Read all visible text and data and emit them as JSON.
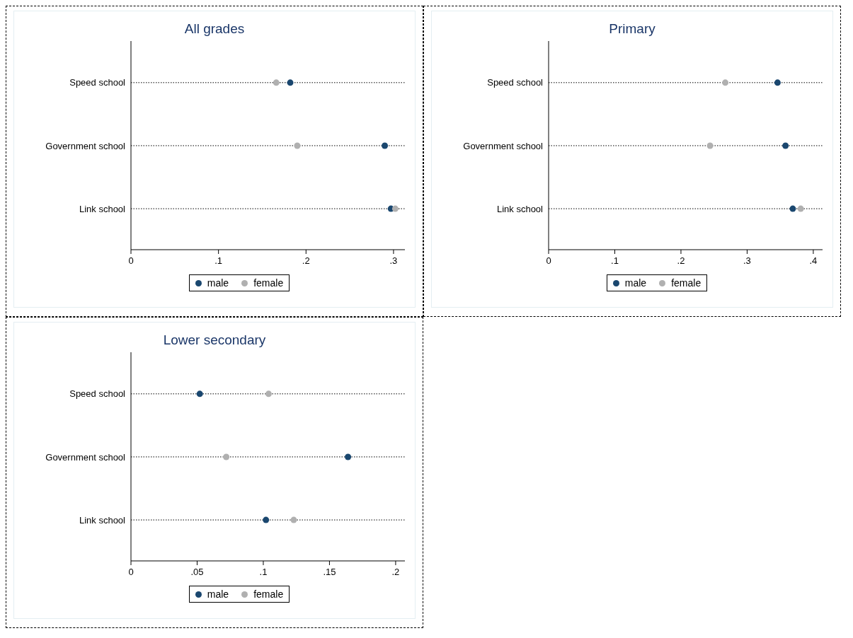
{
  "chart_data": [
    {
      "type": "scatter",
      "title": "All grades",
      "orientation": "horizontal",
      "categories": [
        "Speed school",
        "Government school",
        "Link school"
      ],
      "xlim": [
        0,
        0.313
      ],
      "xticks": [
        {
          "value": 0,
          "label": "0"
        },
        {
          "value": 0.1,
          "label": ".1"
        },
        {
          "value": 0.2,
          "label": ".2"
        },
        {
          "value": 0.3,
          "label": ".3"
        }
      ],
      "grid": "y",
      "line_style": "dotted",
      "marker": "circle",
      "legend": "bottom",
      "series": [
        {
          "name": "male",
          "color": "#1a476f",
          "values": [
            0.182,
            0.29,
            0.297
          ]
        },
        {
          "name": "female",
          "color": "#b0b0b0",
          "values": [
            0.166,
            0.19,
            0.302
          ]
        }
      ]
    },
    {
      "type": "scatter",
      "title": "Primary",
      "orientation": "horizontal",
      "categories": [
        "Speed school",
        "Government school",
        "Link school"
      ],
      "xlim": [
        0,
        0.414
      ],
      "xticks": [
        {
          "value": 0,
          "label": "0"
        },
        {
          "value": 0.1,
          "label": ".1"
        },
        {
          "value": 0.2,
          "label": ".2"
        },
        {
          "value": 0.3,
          "label": ".3"
        },
        {
          "value": 0.4,
          "label": ".4"
        }
      ],
      "grid": "y",
      "line_style": "dotted",
      "marker": "circle",
      "legend": "bottom",
      "series": [
        {
          "name": "male",
          "color": "#1a476f",
          "values": [
            0.346,
            0.358,
            0.369
          ]
        },
        {
          "name": "female",
          "color": "#b0b0b0",
          "values": [
            0.267,
            0.244,
            0.381
          ]
        }
      ]
    },
    {
      "type": "scatter",
      "title": "Lower secondary",
      "orientation": "horizontal",
      "categories": [
        "Speed school",
        "Government school",
        "Link school"
      ],
      "xlim": [
        0,
        0.207
      ],
      "xticks": [
        {
          "value": 0,
          "label": "0"
        },
        {
          "value": 0.05,
          "label": ".05"
        },
        {
          "value": 0.1,
          "label": ".1"
        },
        {
          "value": 0.15,
          "label": ".15"
        },
        {
          "value": 0.2,
          "label": ".2"
        }
      ],
      "grid": "y",
      "line_style": "dotted",
      "marker": "circle",
      "legend": "bottom",
      "series": [
        {
          "name": "male",
          "color": "#1a476f",
          "values": [
            0.052,
            0.164,
            0.102
          ]
        },
        {
          "name": "female",
          "color": "#b0b0b0",
          "values": [
            0.104,
            0.072,
            0.123
          ]
        }
      ]
    }
  ]
}
